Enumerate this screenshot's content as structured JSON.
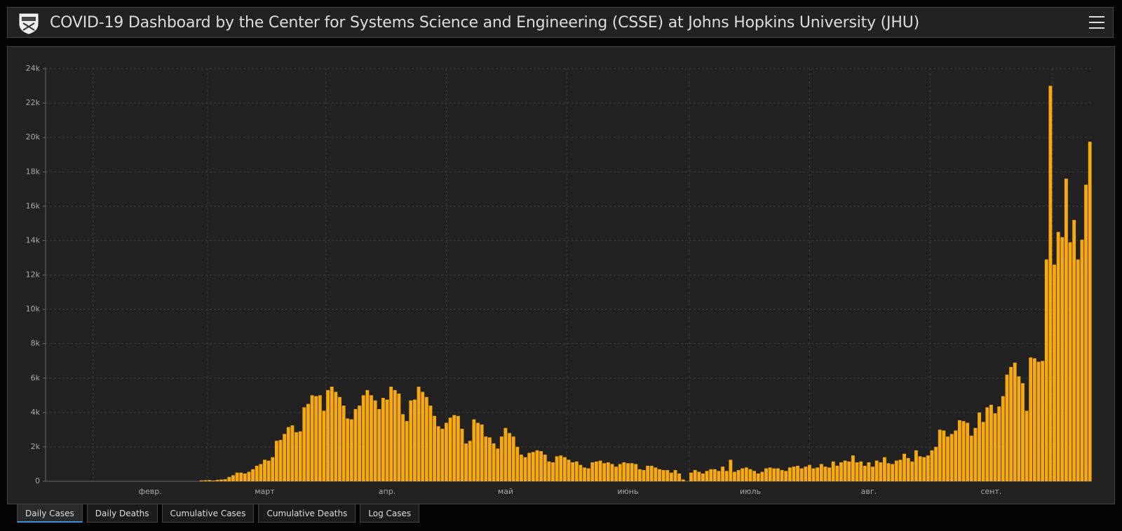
{
  "header": {
    "title": "COVID-19 Dashboard by the Center for Systems Science and Engineering (CSSE) at Johns Hopkins University (JHU)"
  },
  "chart_data": {
    "type": "bar",
    "color": "#f7a90f",
    "grid": true,
    "ylim": [
      0,
      24000
    ],
    "yticks": [
      0,
      {
        "value": 2000,
        "label": "2k"
      },
      {
        "value": 4000,
        "label": "4k"
      },
      {
        "value": 6000,
        "label": "6k"
      },
      {
        "value": 8000,
        "label": "8k"
      },
      {
        "value": 10000,
        "label": "10k"
      },
      {
        "value": 12000,
        "label": "12k"
      },
      {
        "value": 14000,
        "label": "14k"
      },
      {
        "value": 16000,
        "label": "16k"
      },
      {
        "value": 18000,
        "label": "18k"
      },
      {
        "value": 20000,
        "label": "20k"
      },
      {
        "value": 22000,
        "label": "22k"
      },
      {
        "value": 24000,
        "label": "24k"
      }
    ],
    "categories": [
      null,
      null,
      null,
      null,
      null,
      null,
      null,
      null,
      null,
      null,
      null,
      null,
      null,
      null,
      null,
      null,
      null,
      null,
      null,
      null,
      null,
      null,
      null,
      null,
      null,
      null,
      "февр.",
      null,
      null,
      null,
      null,
      null,
      null,
      null,
      null,
      null,
      null,
      null,
      null,
      null,
      null,
      null,
      null,
      null,
      null,
      null,
      null,
      null,
      null,
      null,
      null,
      null,
      null,
      null,
      null,
      "март",
      null,
      null,
      null,
      null,
      null,
      null,
      null,
      null,
      null,
      null,
      null,
      null,
      null,
      null,
      null,
      null,
      null,
      null,
      null,
      null,
      null,
      null,
      null,
      null,
      null,
      null,
      null,
      null,
      null,
      null,
      "апр.",
      null,
      null,
      null,
      null,
      null,
      null,
      null,
      null,
      null,
      null,
      null,
      null,
      null,
      null,
      null,
      null,
      null,
      null,
      null,
      null,
      null,
      null,
      null,
      null,
      null,
      null,
      null,
      null,
      null,
      "май",
      null,
      null,
      null,
      null,
      null,
      null,
      null,
      null,
      null,
      null,
      null,
      null,
      null,
      null,
      null,
      null,
      null,
      null,
      null,
      null,
      null,
      null,
      null,
      null,
      null,
      null,
      null,
      null,
      null,
      null,
      "июнь",
      null,
      null,
      null,
      null,
      null,
      null,
      null,
      null,
      null,
      null,
      null,
      null,
      null,
      null,
      null,
      null,
      null,
      null,
      null,
      null,
      null,
      null,
      null,
      null,
      null,
      null,
      null,
      null,
      null,
      null,
      "июль",
      null,
      null,
      null,
      null,
      null,
      null,
      null,
      null,
      null,
      null,
      null,
      null,
      null,
      null,
      null,
      null,
      null,
      null,
      null,
      null,
      null,
      null,
      null,
      null,
      null,
      null,
      null,
      null,
      null,
      "авг.",
      null,
      null,
      null,
      null,
      null,
      null,
      null,
      null,
      null,
      null,
      null,
      null,
      null,
      null,
      null,
      null,
      null,
      null,
      null,
      null,
      null,
      null,
      null,
      null,
      null,
      null,
      null,
      null,
      null,
      null,
      "сент.",
      null,
      null,
      null,
      null,
      null,
      null,
      null,
      null,
      null,
      null,
      null,
      null,
      null,
      null,
      null,
      null,
      null,
      null,
      null,
      null,
      null,
      null,
      null,
      null,
      null
    ],
    "values": [
      0,
      0,
      0,
      0,
      0,
      0,
      0,
      0,
      0,
      0,
      0,
      0,
      0,
      0,
      0,
      0,
      0,
      0,
      0,
      0,
      0,
      0,
      0,
      0,
      0,
      0,
      0,
      0,
      0,
      0,
      0,
      0,
      0,
      0,
      0,
      0,
      0,
      0,
      0,
      50,
      60,
      70,
      40,
      80,
      100,
      120,
      250,
      350,
      500,
      500,
      450,
      550,
      700,
      900,
      1000,
      1250,
      1200,
      1400,
      2350,
      2400,
      2750,
      3150,
      3250,
      2850,
      2900,
      4300,
      4500,
      5000,
      4950,
      5000,
      4100,
      5300,
      5500,
      5200,
      4900,
      4400,
      3650,
      3600,
      4200,
      4400,
      5000,
      5300,
      5000,
      4700,
      4200,
      4850,
      4750,
      5500,
      5300,
      5100,
      3900,
      3500,
      4700,
      4750,
      5500,
      5200,
      4900,
      4400,
      3800,
      3200,
      3050,
      3400,
      3700,
      3850,
      3800,
      3050,
      2200,
      2350,
      3600,
      3400,
      3300,
      2600,
      2550,
      2200,
      1900,
      2600,
      3100,
      2800,
      2600,
      2000,
      1550,
      1400,
      1650,
      1700,
      1800,
      1750,
      1550,
      1150,
      1100,
      1450,
      1500,
      1400,
      1250,
      1100,
      1150,
      950,
      800,
      750,
      1100,
      1150,
      1200,
      1050,
      1100,
      1000,
      850,
      1000,
      1100,
      1050,
      1050,
      1000,
      700,
      650,
      900,
      900,
      800,
      700,
      650,
      650,
      500,
      650,
      450,
      100,
      0,
      500,
      650,
      550,
      450,
      600,
      700,
      700,
      600,
      850,
      600,
      1250,
      550,
      650,
      750,
      800,
      700,
      600,
      450,
      550,
      750,
      800,
      750,
      750,
      650,
      600,
      800,
      850,
      900,
      750,
      850,
      950,
      750,
      800,
      1000,
      850,
      800,
      1150,
      900,
      1100,
      1200,
      1150,
      1500,
      1100,
      1150,
      900,
      1100,
      850,
      1200,
      1100,
      1400,
      1050,
      1000,
      1200,
      1250,
      1600,
      1350,
      1150,
      1800,
      1450,
      1400,
      1500,
      1800,
      2000,
      3000,
      2950,
      2600,
      2750,
      2950,
      3550,
      3500,
      3400,
      2650,
      3100,
      4000,
      3450,
      4300,
      4450,
      3950,
      4350,
      4950,
      6200,
      6650,
      6900,
      6100,
      5700,
      4100,
      7200,
      7150,
      6950,
      7000,
      12900,
      23000,
      12600,
      14500,
      14200,
      17600,
      13900,
      15200,
      12900,
      14050,
      17250,
      19750
    ]
  },
  "tabs": [
    "Daily Cases",
    "Daily Deaths",
    "Cumulative Cases",
    "Cumulative Deaths",
    "Log Cases"
  ]
}
